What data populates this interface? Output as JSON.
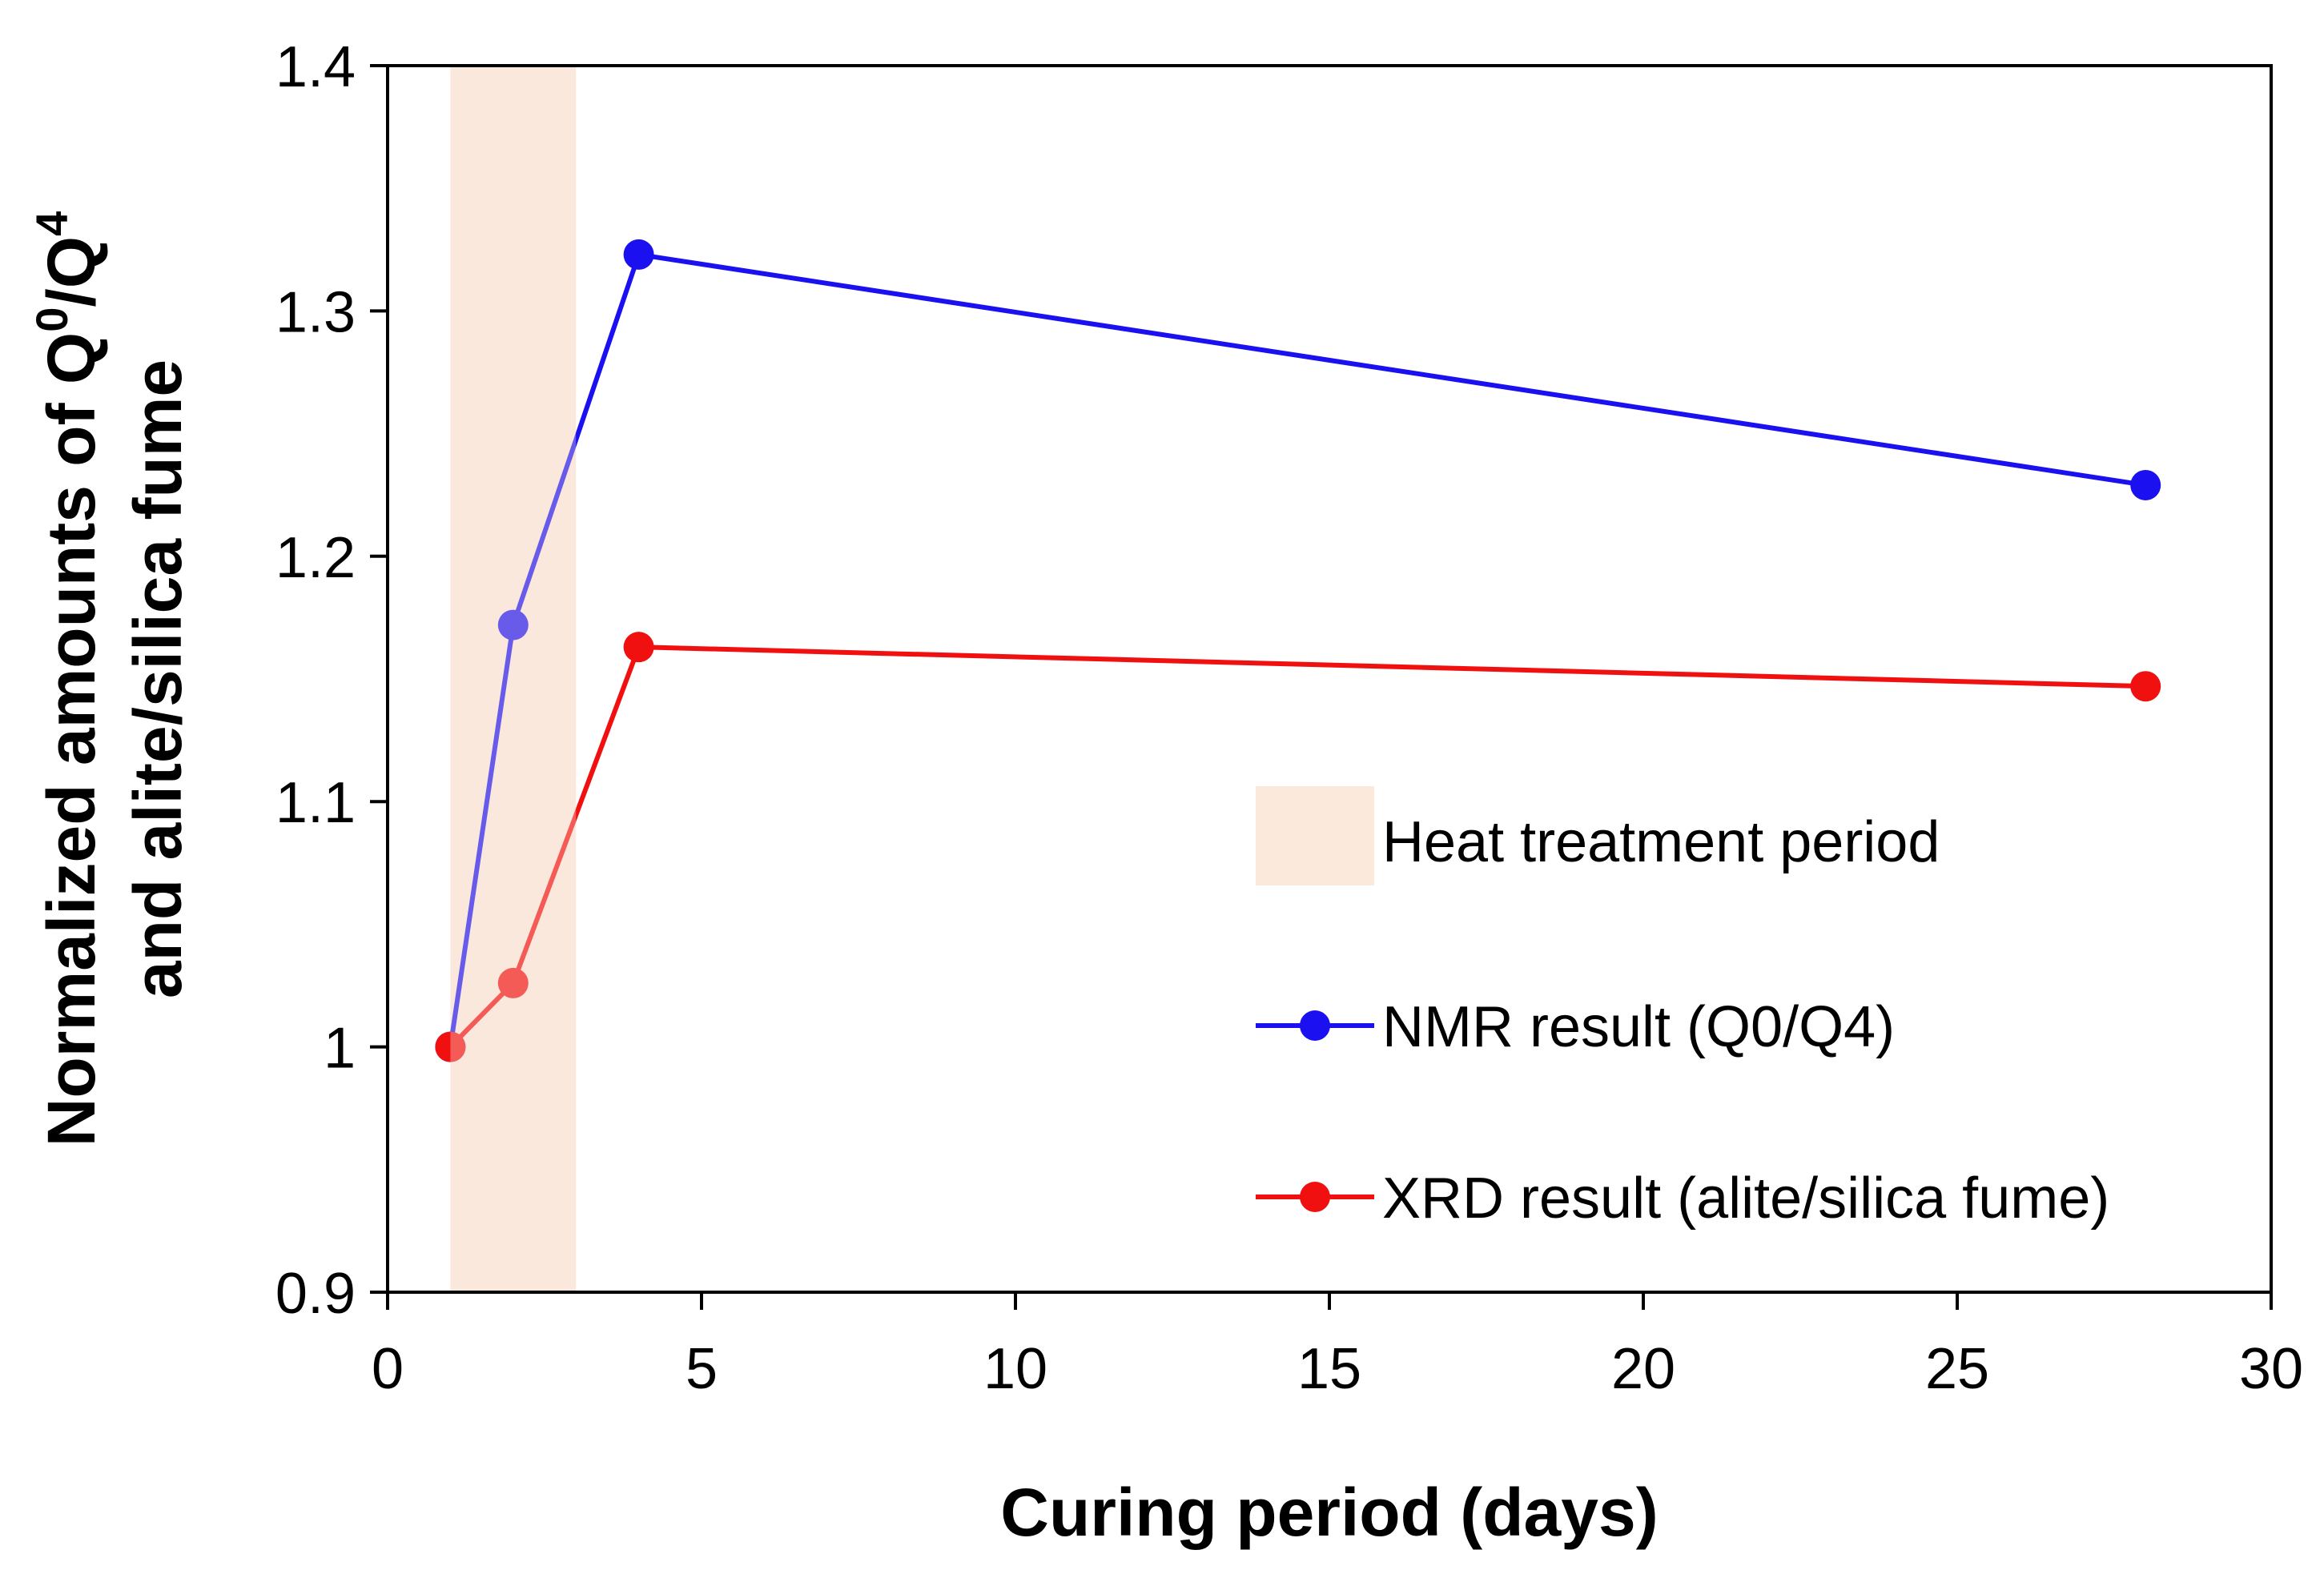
{
  "chart_data": {
    "type": "line",
    "xlabel": "Curing period (days)",
    "ylabel": {
      "line1_prefix": "Normalized amounts of Q",
      "line1_sup1": "0",
      "line1_mid": "/Q",
      "line1_sup2": "4",
      "line2": "and alite/silica fume"
    },
    "xlim": [
      0,
      30
    ],
    "ylim": [
      0.9,
      1.4
    ],
    "xticks": [
      "0",
      "5",
      "10",
      "15",
      "20",
      "25",
      "30"
    ],
    "yticks": [
      "0.9",
      "1",
      "1.1",
      "1.2",
      "1.3",
      "1.4"
    ],
    "grid": false,
    "legend_position": "center-right",
    "shaded_region": {
      "label": "Heat treatment period",
      "x_start": 1,
      "x_end": 3,
      "color": "#fbe9dc"
    },
    "series": [
      {
        "name": "NMR result (Q0/Q4)",
        "color": "#1a10f0",
        "x": [
          1,
          2,
          4,
          28
        ],
        "y": [
          1.0,
          1.172,
          1.323,
          1.229
        ]
      },
      {
        "name": "XRD result (alite/silica fume)",
        "color": "#f01010",
        "x": [
          1,
          2,
          4,
          28
        ],
        "y": [
          1.0,
          1.026,
          1.163,
          1.147
        ]
      }
    ]
  }
}
